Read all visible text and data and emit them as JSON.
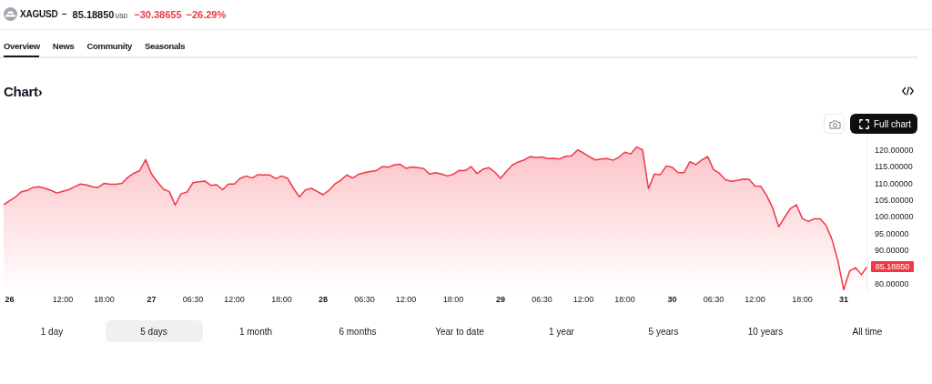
{
  "chart_data": {
    "type": "area",
    "title": "XAGUSD",
    "subtitle": "Chart›",
    "color": "#f23645",
    "categories": [
      null,
      "26",
      null,
      null,
      null,
      null,
      null,
      null,
      null,
      null,
      "12:00",
      null,
      null,
      null,
      null,
      null,
      null,
      "18:00",
      null,
      null,
      null,
      null,
      null,
      null,
      null,
      "27",
      null,
      null,
      null,
      null,
      null,
      null,
      "06:30",
      null,
      null,
      null,
      null,
      null,
      null,
      "12:00",
      null,
      null,
      null,
      null,
      null,
      null,
      null,
      "18:00",
      null,
      null,
      null,
      null,
      null,
      null,
      "28",
      null,
      null,
      null,
      null,
      null,
      null,
      "06:30",
      null,
      null,
      null,
      null,
      null,
      null,
      "12:00",
      null,
      null,
      null,
      null,
      null,
      null,
      null,
      "18:00",
      null,
      null,
      null,
      null,
      null,
      null,
      null,
      "29",
      null,
      null,
      null,
      null,
      null,
      null,
      "06:30",
      null,
      null,
      null,
      null,
      null,
      null,
      "12:00",
      null,
      null,
      null,
      null,
      null,
      null,
      "18:00",
      null,
      null,
      null,
      null,
      null,
      null,
      null,
      "30",
      null,
      null,
      null,
      null,
      null,
      null,
      "06:30",
      null,
      null,
      null,
      null,
      null,
      null,
      "12:00",
      null,
      null,
      null,
      null,
      null,
      null,
      null,
      "18:00",
      null,
      null,
      null,
      null,
      null,
      null,
      "31",
      null,
      null,
      null,
      null
    ],
    "values": [
      103.6,
      104.8,
      105.9,
      107.5,
      107.9,
      108.8,
      109.0,
      108.5,
      107.9,
      107.1,
      107.6,
      108.1,
      109.0,
      109.8,
      109.5,
      109.0,
      108.8,
      110.0,
      109.7,
      109.7,
      110.0,
      111.8,
      113.0,
      113.8,
      117.1,
      112.8,
      110.4,
      108.3,
      107.5,
      103.5,
      106.9,
      107.4,
      110.2,
      110.5,
      110.7,
      109.4,
      109.6,
      108.1,
      109.8,
      109.8,
      111.5,
      112.2,
      111.6,
      112.6,
      112.5,
      112.5,
      111.4,
      112.2,
      111.5,
      108.5,
      105.9,
      108.0,
      108.5,
      107.6,
      106.6,
      107.9,
      109.8,
      110.9,
      112.5,
      111.6,
      112.7,
      113.2,
      113.5,
      113.8,
      115.0,
      114.8,
      115.5,
      115.7,
      114.5,
      114.9,
      114.7,
      114.4,
      112.8,
      113.2,
      112.8,
      112.2,
      112.7,
      113.9,
      113.8,
      115.0,
      112.9,
      114.2,
      114.7,
      113.4,
      111.5,
      113.6,
      115.5,
      116.4,
      117.0,
      118.0,
      117.7,
      117.9,
      117.4,
      117.5,
      117.3,
      118.1,
      118.2,
      120.0,
      119.1,
      118.0,
      117.0,
      117.3,
      117.4,
      116.9,
      117.8,
      119.3,
      118.8,
      120.9,
      120.0,
      108.4,
      112.8,
      112.6,
      115.2,
      114.8,
      113.2,
      113.2,
      116.5,
      115.6,
      117.0,
      118.0,
      114.1,
      113.0,
      111.1,
      110.6,
      110.9,
      111.3,
      111.2,
      109.2,
      109.1,
      106.3,
      102.6,
      97.0,
      99.8,
      102.5,
      103.6,
      99.5,
      98.6,
      99.4,
      99.4,
      97.5,
      93.3,
      87.0,
      78.2,
      83.8,
      84.8,
      82.7,
      85.1885
    ],
    "value_labels": [
      null,
      null,
      null,
      null,
      null,
      null,
      null,
      null,
      null,
      null,
      null,
      null,
      null,
      null,
      null,
      null,
      null,
      null,
      null,
      null,
      null,
      null,
      null,
      null,
      null,
      null,
      null,
      null,
      null,
      null,
      null,
      null,
      null,
      null,
      null,
      null,
      null,
      null,
      null,
      null,
      null,
      null,
      null,
      null,
      null,
      null,
      null,
      null,
      null,
      null,
      null,
      null,
      null,
      null,
      null,
      null,
      null,
      null,
      null,
      null,
      null,
      null,
      null,
      null,
      null,
      null,
      null,
      null,
      null,
      null,
      null,
      null,
      null,
      null,
      null,
      null,
      null,
      null,
      null,
      null,
      null,
      null,
      null,
      null,
      null,
      null,
      null,
      null,
      null,
      null,
      null,
      null,
      null,
      null,
      null,
      null,
      null,
      null,
      null,
      null,
      null,
      null,
      null,
      null,
      null,
      null,
      null,
      null,
      null,
      null,
      null,
      null,
      null,
      null,
      null,
      null,
      null,
      null,
      null,
      null,
      null,
      null,
      null,
      null,
      null,
      null,
      null,
      null,
      null,
      null,
      null,
      null,
      null,
      null,
      null,
      null,
      null,
      null,
      null,
      null,
      null,
      null,
      null,
      null,
      null,
      null,
      "85.18850"
    ],
    "ylim": [
      77.5,
      124
    ],
    "yticks": [
      {
        "value": 80,
        "label": "80.00000"
      },
      {
        "value": 90,
        "label": "90.00000"
      },
      {
        "value": 95,
        "label": "95.00000"
      },
      {
        "value": 100,
        "label": "100.00000"
      },
      {
        "value": 105,
        "label": "105.00000"
      },
      {
        "value": 110,
        "label": "110.00000"
      },
      {
        "value": 115,
        "label": "115.00000"
      },
      {
        "value": 120,
        "label": "120.00000"
      }
    ],
    "annotations": [
      "85.18850",
      "USD",
      "−30.38655",
      "−26.29%",
      "Overview",
      "News",
      "Community",
      "Seasonals",
      "Full chart",
      "1 day",
      "5 days",
      "1 month",
      "6 months",
      "Year to date",
      "1 year",
      "5 years",
      "10 years",
      "All time"
    ]
  }
}
